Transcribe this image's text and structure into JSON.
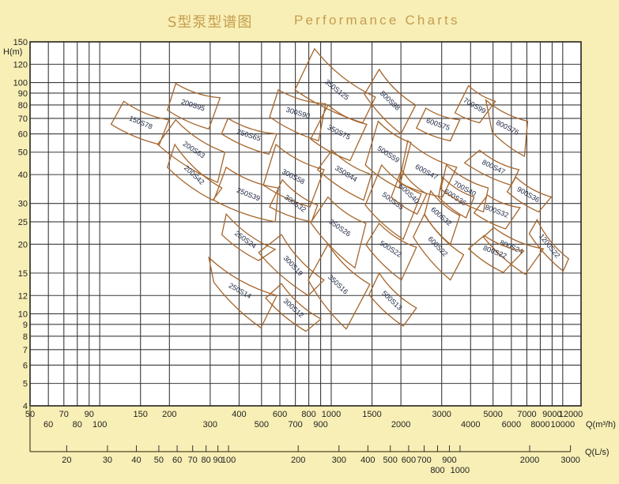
{
  "title_cn": "S型泵型谱图",
  "title_en": "Performance Charts",
  "colors": {
    "background": "#f8efb6",
    "title": "#c59d4f",
    "curve": "#a5652b",
    "grid": "#3a3a3a",
    "plot_bg": "#ffffff"
  },
  "chart_data": {
    "type": "area",
    "title": "S型泵型谱图  Performance Charts",
    "xscale": "log",
    "yscale": "log",
    "xlim": [
      50,
      12000
    ],
    "ylim": [
      4,
      150
    ],
    "ylabel": "H(m)",
    "xlabel": "Q(m³/h)",
    "x2label": "Q(L/s)",
    "grid": true,
    "y_ticks": [
      150,
      120,
      100,
      90,
      80,
      70,
      60,
      50,
      40,
      30,
      25,
      20,
      15,
      12,
      10,
      9,
      8,
      7,
      6,
      5,
      4
    ],
    "x_grid": [
      60,
      70,
      80,
      90,
      100,
      150,
      200,
      300,
      400,
      500,
      600,
      700,
      800,
      900,
      1000,
      1500,
      2000,
      3000,
      4000,
      5000,
      6000,
      7000,
      8000,
      9000,
      10000
    ],
    "x_ticks_row1": [
      50,
      70,
      90,
      150,
      200,
      400,
      600,
      800,
      1000,
      1500,
      3000,
      5000,
      7000,
      9000,
      12000
    ],
    "x_ticks_row2": [
      60,
      80,
      100,
      300,
      500,
      700,
      900,
      2000,
      4000,
      6000,
      8000,
      10000
    ],
    "x2_ticks_row1": [
      20,
      30,
      40,
      50,
      60,
      70,
      80,
      90,
      100,
      200,
      300,
      400,
      500,
      600,
      700,
      900,
      2000,
      3000
    ],
    "x2_ticks_row2": [
      800,
      1000
    ],
    "pumps": [
      {
        "name": "150S78",
        "corners": [
          [
            127,
            83
          ],
          [
            199,
            69
          ],
          [
            181,
            54
          ],
          [
            112,
            66
          ]
        ]
      },
      {
        "name": "200S95",
        "corners": [
          [
            213,
            99
          ],
          [
            331,
            86
          ],
          [
            296,
            63
          ],
          [
            196,
            76
          ]
        ]
      },
      {
        "name": "200S63",
        "corners": [
          [
            213,
            69
          ],
          [
            347,
            50
          ],
          [
            323,
            37
          ],
          [
            178,
            54
          ]
        ]
      },
      {
        "name": "200S42",
        "corners": [
          [
            211,
            54
          ],
          [
            337,
            35
          ],
          [
            308,
            31
          ],
          [
            196,
            43
          ]
        ]
      },
      {
        "name": "250S65",
        "corners": [
          [
            358,
            70
          ],
          [
            582,
            60
          ],
          [
            538,
            49
          ],
          [
            336,
            60
          ]
        ]
      },
      {
        "name": "250S39",
        "corners": [
          [
            352,
            43
          ],
          [
            591,
            35
          ],
          [
            573,
            25
          ],
          [
            311,
            31
          ]
        ]
      },
      {
        "name": "250S24",
        "corners": [
          [
            352,
            27
          ],
          [
            573,
            19
          ],
          [
            486,
            17
          ],
          [
            337,
            22
          ]
        ]
      },
      {
        "name": "250S14",
        "corners": [
          [
            296,
            17.5
          ],
          [
            582,
            12
          ],
          [
            497,
            8.7
          ],
          [
            311,
            13.7
          ]
        ]
      },
      {
        "name": "300S90",
        "corners": [
          [
            591,
            93
          ],
          [
            946,
            81
          ],
          [
            882,
            56
          ],
          [
            542,
            71
          ]
        ]
      },
      {
        "name": "300S58",
        "corners": [
          [
            577,
            54
          ],
          [
            931,
            42
          ],
          [
            809,
            29
          ],
          [
            509,
            36
          ]
        ]
      },
      {
        "name": "300S32",
        "corners": [
          [
            615,
            38
          ],
          [
            873,
            29.5
          ],
          [
            822,
            25
          ],
          [
            542,
            29
          ]
        ]
      },
      {
        "name": "300S19",
        "corners": [
          [
            610,
            22
          ],
          [
            931,
            14
          ],
          [
            796,
            12
          ],
          [
            486,
            18.4
          ]
        ]
      },
      {
        "name": "300S12",
        "corners": [
          [
            610,
            13.5
          ],
          [
            903,
            9.5
          ],
          [
            778,
            8.4
          ],
          [
            521,
            11.7
          ]
        ]
      },
      {
        "name": "350S125",
        "corners": [
          [
            847,
            140
          ],
          [
            1551,
            86.5
          ],
          [
            1369,
            67
          ],
          [
            697,
            93
          ]
        ]
      },
      {
        "name": "350S75",
        "corners": [
          [
            969,
            80
          ],
          [
            1423,
            66
          ],
          [
            1207,
            46
          ],
          [
            815,
            57
          ]
        ]
      },
      {
        "name": "350S44",
        "corners": [
          [
            1008,
            51
          ],
          [
            1492,
            40
          ],
          [
            1380,
            31
          ],
          [
            873,
            42
          ]
        ]
      },
      {
        "name": "350S26",
        "corners": [
          [
            969,
            32
          ],
          [
            1412,
            24.6
          ],
          [
            1265,
            15.8
          ],
          [
            815,
            24.8
          ]
        ]
      },
      {
        "name": "350S16",
        "corners": [
          [
            969,
            20
          ],
          [
            1468,
            13.4
          ],
          [
            1161,
            8.6
          ],
          [
            796,
            14
          ]
        ]
      },
      {
        "name": "500S98",
        "corners": [
          [
            1611,
            114
          ],
          [
            2316,
            80
          ],
          [
            2000,
            60
          ],
          [
            1392,
            89
          ]
        ]
      },
      {
        "name": "500S59",
        "corners": [
          [
            1596,
            68
          ],
          [
            2209,
            55
          ],
          [
            1964,
            35
          ],
          [
            1404,
            44
          ]
        ]
      },
      {
        "name": "500S35",
        "corners": [
          [
            1651,
            44
          ],
          [
            2446,
            33
          ],
          [
            2046,
            21
          ],
          [
            1404,
            29.5
          ]
        ]
      },
      {
        "name": "500S22",
        "corners": [
          [
            1611,
            24.6
          ],
          [
            2334,
            19.4
          ],
          [
            2011,
            14
          ],
          [
            1412,
            19.9
          ]
        ]
      },
      {
        "name": "500S13",
        "corners": [
          [
            1611,
            15
          ],
          [
            2334,
            10.6
          ],
          [
            2046,
            8.85
          ],
          [
            1457,
            12.1
          ]
        ]
      },
      {
        "name": "500S40",
        "corners": [
          [
            2011,
            42
          ],
          [
            2586,
            33
          ],
          [
            2351,
            27
          ],
          [
            1818,
            32
          ]
        ]
      },
      {
        "name": "600S75",
        "corners": [
          [
            2565,
            77.5
          ],
          [
            3591,
            69
          ],
          [
            3270,
            56
          ],
          [
            2334,
            63.6
          ]
        ]
      },
      {
        "name": "600S47",
        "corners": [
          [
            2141,
            56
          ],
          [
            3483,
            43
          ],
          [
            3024,
            32
          ],
          [
            1964,
            37
          ]
        ]
      },
      {
        "name": "600S36",
        "corners": [
          [
            3024,
            39
          ],
          [
            4139,
            32
          ],
          [
            3826,
            26
          ],
          [
            2906,
            32
          ]
        ]
      },
      {
        "name": "600S32",
        "corners": [
          [
            2690,
            34
          ],
          [
            3595,
            26.6
          ],
          [
            3270,
            20
          ],
          [
            2527,
            26.8
          ]
        ]
      },
      {
        "name": "600S22",
        "corners": [
          [
            2527,
            27
          ],
          [
            3730,
            18
          ],
          [
            3270,
            14
          ],
          [
            2262,
            21.5
          ]
        ]
      },
      {
        "name": "700S99",
        "corners": [
          [
            3919,
            97
          ],
          [
            5119,
            83
          ],
          [
            4374,
            67
          ],
          [
            3427,
            74
          ]
        ]
      },
      {
        "name": "700S40",
        "corners": [
          [
            3143,
            44
          ],
          [
            4766,
            35
          ],
          [
            4542,
            27.6
          ],
          [
            2976,
            34.6
          ]
        ]
      },
      {
        "name": "800S76",
        "corners": [
          [
            4654,
            84
          ],
          [
            7055,
            68
          ],
          [
            6835,
            48
          ],
          [
            4961,
            61
          ]
        ]
      },
      {
        "name": "800S47",
        "corners": [
          [
            4374,
            51
          ],
          [
            6468,
            42
          ],
          [
            6000,
            36
          ],
          [
            3765,
            45
          ]
        ]
      },
      {
        "name": "800S32",
        "corners": [
          [
            4730,
            32.6
          ],
          [
            6543,
            28.8
          ],
          [
            5666,
            23.3
          ],
          [
            4139,
            27.3
          ]
        ]
      },
      {
        "name": "800S24",
        "corners": [
          [
            5038,
            23.6
          ],
          [
            8254,
            19.1
          ],
          [
            6890,
            14.8
          ],
          [
            4542,
            21.5
          ]
        ]
      },
      {
        "name": "800S22",
        "corners": [
          [
            4577,
            21.8
          ],
          [
            6785,
            18.7
          ],
          [
            5533,
            15.1
          ],
          [
            3919,
            19.1
          ]
        ]
      },
      {
        "name": "900S36",
        "corners": [
          [
            6272,
            39
          ],
          [
            8930,
            32
          ],
          [
            7875,
            27.6
          ],
          [
            5758,
            33.7
          ]
        ]
      },
      {
        "name": "1200S22",
        "corners": [
          [
            7751,
            25.5
          ],
          [
            10606,
            17.3
          ],
          [
            10040,
            15.3
          ],
          [
            7166,
            22.2
          ]
        ]
      }
    ]
  }
}
